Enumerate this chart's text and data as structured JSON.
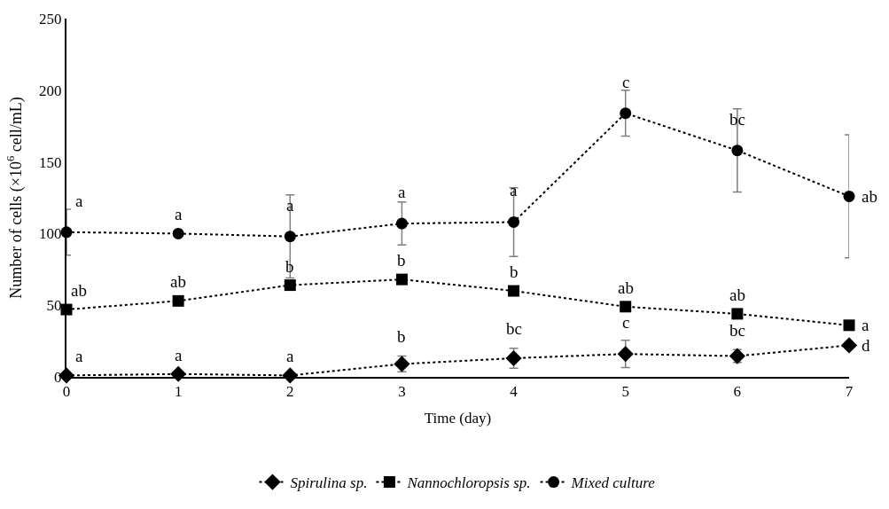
{
  "chart_data": {
    "type": "line",
    "xlabel": "Time (day)",
    "ylabel": "Number of cells (×10$^{6}$ cell/mL)",
    "x": [
      0,
      1,
      2,
      3,
      4,
      5,
      6,
      7
    ],
    "xlim": [
      0,
      7
    ],
    "xticks": [
      0,
      1,
      2,
      3,
      4,
      5,
      6,
      7
    ],
    "ylim": [
      0,
      250
    ],
    "yticks": [
      0,
      50,
      100,
      150,
      200,
      250
    ],
    "legend": "bottom",
    "line_style": "dotted",
    "series": [
      {
        "name": "Spirulina sp.",
        "color": "#000000",
        "marker": "diamond",
        "values": [
          1,
          2,
          1,
          9,
          13,
          16,
          14.5,
          22
        ],
        "errors": [
          null,
          null,
          null,
          5.5,
          7,
          9.5,
          4.5,
          null
        ]
      },
      {
        "name": "Nannochloropsis sp.",
        "color": "#000000",
        "marker": "square",
        "values": [
          47,
          53,
          64,
          68,
          60,
          49,
          44,
          36
        ]
      },
      {
        "name": "Mixed culture",
        "color": "#000000",
        "marker": "circle",
        "values": [
          101,
          100,
          98,
          107,
          108,
          184,
          158,
          126
        ],
        "errors": [
          16,
          null,
          29,
          15,
          24,
          16,
          29,
          43
        ]
      }
    ],
    "annotations": [
      {
        "text": "a",
        "x": 0,
        "y": 101
      },
      {
        "text": "a",
        "x": 1,
        "y": 100
      },
      {
        "text": "a",
        "x": 2,
        "y": 98
      },
      {
        "text": "a",
        "x": 3,
        "y": 107
      },
      {
        "text": "a",
        "x": 4,
        "y": 108
      },
      {
        "text": "c",
        "x": 5,
        "y": 184
      },
      {
        "text": "bc",
        "x": 6,
        "y": 158
      },
      {
        "text": "ab",
        "x": 7,
        "y": 126
      },
      {
        "text": "ab",
        "x": 0,
        "y": 47
      },
      {
        "text": "ab",
        "x": 1,
        "y": 53
      },
      {
        "text": "b",
        "x": 2,
        "y": 64
      },
      {
        "text": "b",
        "x": 3,
        "y": 68
      },
      {
        "text": "b",
        "x": 4,
        "y": 60
      },
      {
        "text": "ab",
        "x": 5,
        "y": 49
      },
      {
        "text": "ab",
        "x": 6,
        "y": 44
      },
      {
        "text": "a",
        "x": 7,
        "y": 36
      },
      {
        "text": "a",
        "x": 0,
        "y": 1
      },
      {
        "text": "a",
        "x": 1,
        "y": 2
      },
      {
        "text": "a",
        "x": 2,
        "y": 1
      },
      {
        "text": "b",
        "x": 3,
        "y": 9
      },
      {
        "text": "bc",
        "x": 4,
        "y": 13
      },
      {
        "text": "c",
        "x": 5,
        "y": 16
      },
      {
        "text": "bc",
        "x": 6,
        "y": 14.5
      },
      {
        "text": "d",
        "x": 7,
        "y": 22
      }
    ]
  }
}
